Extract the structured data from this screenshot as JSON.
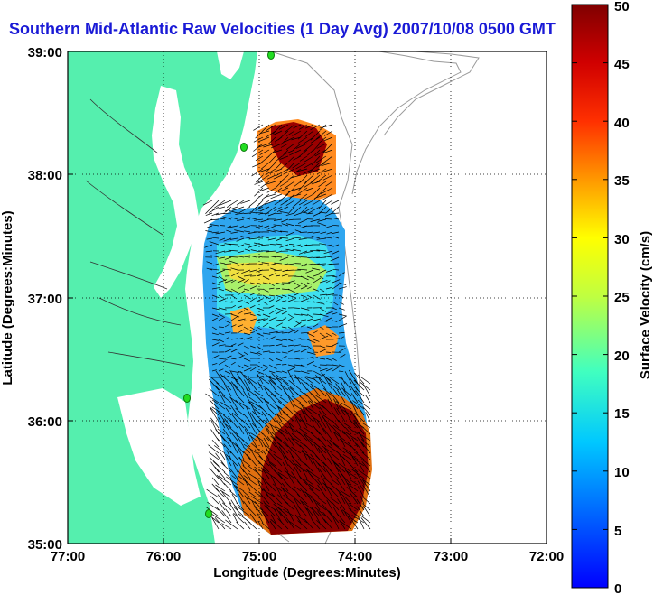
{
  "title": "Southern Mid-Atlantic Raw Velocities (1 Day Avg) 2007/10/08 0500 GMT",
  "map": {
    "xlabel": "Longitude (Degrees:Minutes)",
    "ylabel": "Latitude (Degrees:Minutes)",
    "x_ticks": [
      "77:00",
      "76:00",
      "75:00",
      "74:00",
      "73:00",
      "72:00"
    ],
    "y_ticks": [
      "35:00",
      "36:00",
      "37:00",
      "38:00",
      "39:00"
    ],
    "land_color": "#55efae",
    "water_color": "#ffffff",
    "station_color": "#22dd22",
    "grid": "dotted"
  },
  "colorbar": {
    "label": "Surface Velocity (cm/s)",
    "ticks": [
      "0",
      "5",
      "10",
      "15",
      "20",
      "25",
      "30",
      "35",
      "40",
      "45",
      "50"
    ],
    "min": 0,
    "max": 50,
    "colormap": "jet"
  }
}
